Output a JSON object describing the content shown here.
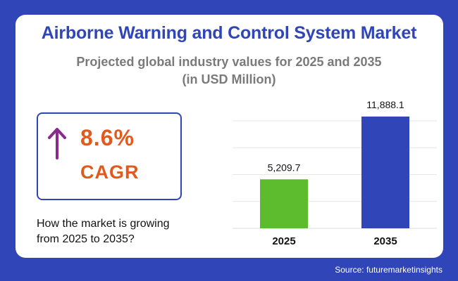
{
  "title": "Airborne Warning and Control System Market",
  "subtitle_line1": "Projected global industry values for 2025 and 2035",
  "subtitle_line2": "(in USD Million)",
  "cagr": {
    "value": "8.6%",
    "label": "CAGR",
    "arrow_icon": "up-arrow-icon",
    "arrow_color": "#8a2a8c",
    "text_color": "#e05a1e"
  },
  "question_line1": "How the market is growing",
  "question_line2": "from 2025 to 2035?",
  "source": "Source: futuremarketinsights",
  "colors": {
    "background": "#2f45b8",
    "card": "#ffffff",
    "title": "#2f45b8",
    "subtitle": "#7a7a7a"
  },
  "chart_data": {
    "type": "bar",
    "categories": [
      "2025",
      "2035"
    ],
    "values": [
      5209.7,
      11888.1
    ],
    "value_labels": [
      "5,209.7",
      "11,888.1"
    ],
    "bar_colors": [
      "#5dbb2e",
      "#2f45b8"
    ],
    "ylim": [
      0,
      12700
    ],
    "grid": true
  }
}
